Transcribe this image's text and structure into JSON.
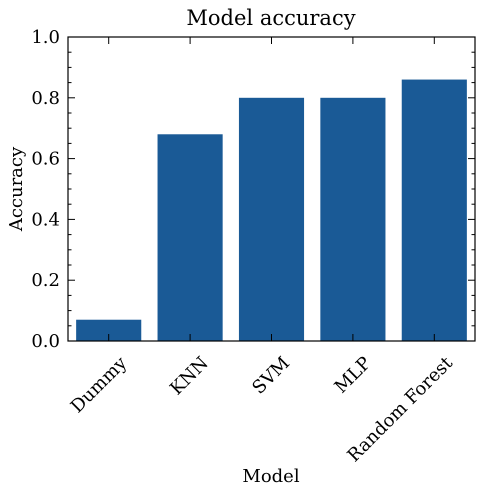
{
  "chart_data": {
    "type": "bar",
    "title": "Model accuracy",
    "xlabel": "Model",
    "ylabel": "Accuracy",
    "categories": [
      "Dummy",
      "KNN",
      "SVM",
      "MLP",
      "Random Forest"
    ],
    "values": [
      0.07,
      0.68,
      0.8,
      0.8,
      0.86
    ],
    "ylim": [
      0,
      1.0
    ],
    "yticks": [
      "0.0",
      "0.2",
      "0.4",
      "0.6",
      "0.8",
      "1.0"
    ],
    "bar_color": "#1a5a96",
    "grid": false,
    "legend": "none"
  }
}
